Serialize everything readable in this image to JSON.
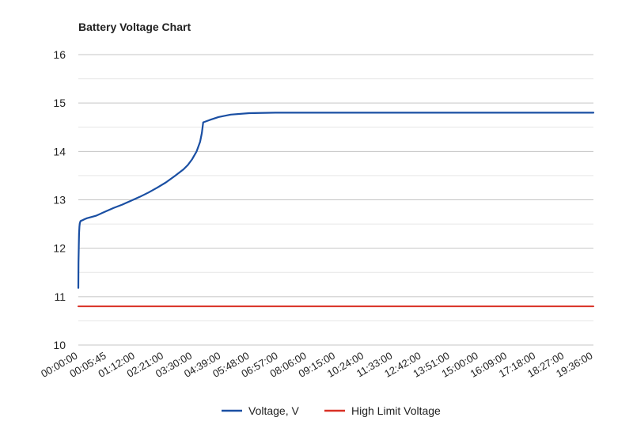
{
  "chart_data": {
    "type": "line",
    "title": "Battery Voltage Chart",
    "xlabel": "",
    "ylabel": "",
    "ylim": [
      10,
      16
    ],
    "yticks": [
      "10",
      "11",
      "12",
      "13",
      "14",
      "15",
      "16"
    ],
    "xticks": [
      "00:00:00",
      "00:05:45",
      "01:12:00",
      "02:21:00",
      "03:30:00",
      "04:39:00",
      "05:48:00",
      "06:57:00",
      "08:06:00",
      "09:15:00",
      "10:24:00",
      "11:33:00",
      "12:42:00",
      "13:51:00",
      "15:00:00",
      "16:09:00",
      "17:18:00",
      "18:27:00",
      "19:36:00"
    ],
    "grid": true,
    "legend_position": "bottom",
    "series": [
      {
        "name": "Voltage, V",
        "color": "#1a4fa3",
        "points": [
          [
            "00:00:00",
            11.18
          ],
          [
            "00:00:20",
            11.7
          ],
          [
            "00:01:00",
            12.05
          ],
          [
            "00:01:40",
            12.3
          ],
          [
            "00:02:30",
            12.45
          ],
          [
            "00:03:30",
            12.52
          ],
          [
            "00:05:00",
            12.56
          ],
          [
            "00:07:00",
            12.57
          ],
          [
            "00:10:00",
            12.58
          ],
          [
            "00:12:00",
            12.59
          ],
          [
            "00:14:00",
            12.6
          ],
          [
            "00:20:00",
            12.62
          ],
          [
            "00:40:00",
            12.67
          ],
          [
            "01:00:00",
            12.75
          ],
          [
            "01:20:00",
            12.83
          ],
          [
            "01:40:00",
            12.9
          ],
          [
            "02:00:00",
            12.98
          ],
          [
            "02:20:00",
            13.06
          ],
          [
            "02:40:00",
            13.15
          ],
          [
            "03:00:00",
            13.25
          ],
          [
            "03:20:00",
            13.36
          ],
          [
            "03:40:00",
            13.49
          ],
          [
            "04:00:00",
            13.63
          ],
          [
            "04:10:00",
            13.72
          ],
          [
            "04:20:00",
            13.84
          ],
          [
            "04:30:00",
            14.0
          ],
          [
            "04:38:00",
            14.2
          ],
          [
            "04:42:00",
            14.38
          ],
          [
            "04:45:00",
            14.6
          ],
          [
            "05:00:00",
            14.65
          ],
          [
            "05:20:00",
            14.71
          ],
          [
            "05:48:00",
            14.76
          ],
          [
            "06:30:00",
            14.79
          ],
          [
            "07:30:00",
            14.8
          ],
          [
            "19:36:00",
            14.8
          ]
        ]
      },
      {
        "name": "High Limit Voltage",
        "color": "#d93025",
        "points": [
          [
            "00:00:00",
            10.8
          ],
          [
            "19:36:00",
            10.8
          ]
        ]
      }
    ]
  }
}
